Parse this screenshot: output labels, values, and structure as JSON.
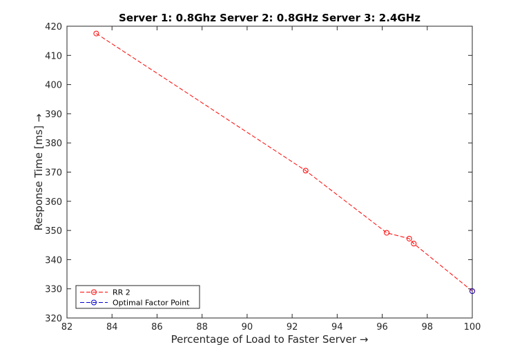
{
  "chart_data": {
    "type": "line",
    "title": "Server 1: 0.8Ghz Server 2: 0.8GHz Server 3: 2.4GHz",
    "xlabel": "Percentage of Load to Faster Server →",
    "ylabel": "Response Time [ms] →",
    "xlim": [
      82,
      100
    ],
    "ylim": [
      320,
      420
    ],
    "xticks": [
      82,
      84,
      86,
      88,
      90,
      92,
      94,
      96,
      98,
      100
    ],
    "yticks": [
      320,
      330,
      340,
      350,
      360,
      370,
      380,
      390,
      400,
      410,
      420
    ],
    "grid": false,
    "legend_position": "bottom-left",
    "series": [
      {
        "name": "RR 2",
        "color": "#ff0000",
        "line_style": "dashed",
        "marker": "circle",
        "x": [
          83.3,
          92.6,
          96.2,
          97.2,
          97.4,
          100
        ],
        "y": [
          417.5,
          370.5,
          349.2,
          347.2,
          345.5,
          329.2
        ]
      },
      {
        "name": "Optimal Factor Point",
        "color": "#0000cc",
        "line_style": "dashed",
        "marker": "circle",
        "x": [
          100
        ],
        "y": [
          329.2
        ]
      }
    ]
  }
}
